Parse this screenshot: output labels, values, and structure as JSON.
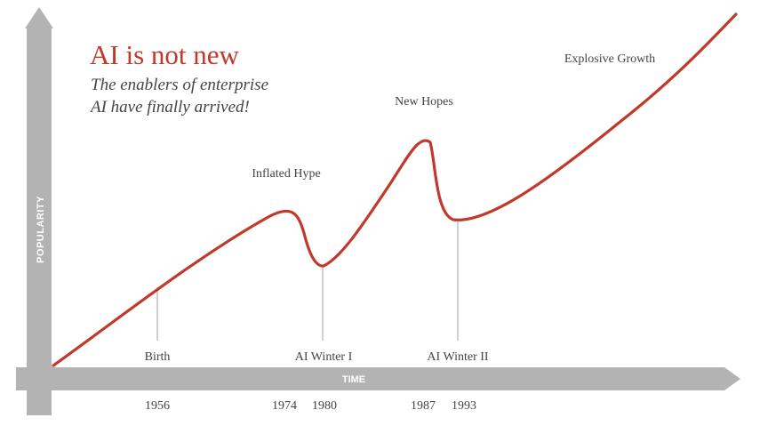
{
  "chart_data": {
    "type": "line",
    "title": "AI is not new",
    "subtitle_line1": "The enablers of enterprise",
    "subtitle_line2": "AI have finally arrived!",
    "xlabel": "TIME",
    "ylabel": "POPULARITY",
    "x_ticks": [
      {
        "label": "1956",
        "year": 1956
      },
      {
        "label": "1974",
        "year": 1974
      },
      {
        "label": "1980",
        "year": 1980
      },
      {
        "label": "1987",
        "year": 1987
      },
      {
        "label": "1993",
        "year": 1993
      }
    ],
    "annotations": [
      {
        "label": "Birth",
        "year": 1956
      },
      {
        "label": "Inflated Hype",
        "year": 1974
      },
      {
        "label": "AI Winter I",
        "year": 1980
      },
      {
        "label": "New Hopes",
        "year": 1987
      },
      {
        "label": "AI Winter II",
        "year": 1993
      },
      {
        "label": "Explosive Growth"
      }
    ],
    "grid": false,
    "legend": "none",
    "colors": {
      "line": "#c0392b",
      "title": "#c0392b",
      "axis": "#b3b3b3",
      "text": "#444444",
      "leader": "#888888"
    }
  }
}
